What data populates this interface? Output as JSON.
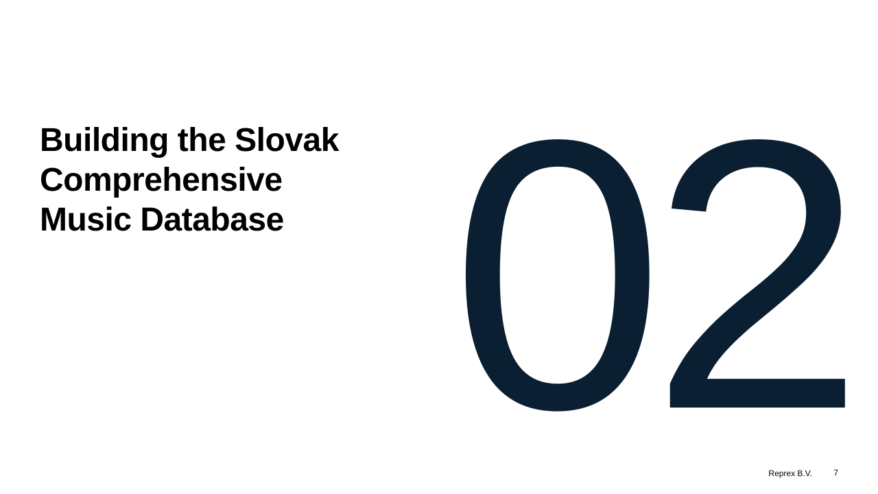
{
  "slide": {
    "title": "Building the Slovak Comprehensive Music Database",
    "section_number": "02",
    "footer_company": "Reprex B.V.",
    "page_number": "7"
  },
  "colors": {
    "number_color": "#0b1f33",
    "title_color": "#000000",
    "background": "#ffffff"
  }
}
